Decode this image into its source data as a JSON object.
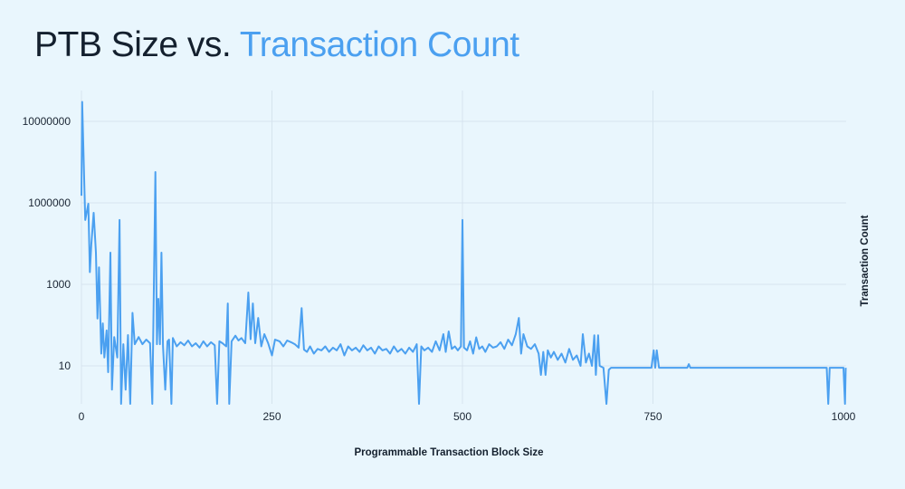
{
  "title": {
    "prefix": "PTB Size vs.",
    "highlight": "Transaction Count"
  },
  "colors": {
    "background": "#e9f6fd",
    "line": "#4ba0f0",
    "title_dark": "#14202e",
    "title_accent": "#4ba0f0",
    "grid": "#d6e4ee"
  },
  "chart_data": {
    "type": "line",
    "title": "PTB Size vs. Transaction Count",
    "xlabel": "Programmable Transaction Block Size",
    "ylabel": "Transaction Count",
    "x_ticks": [
      "0",
      "250",
      "500",
      "750",
      "1000"
    ],
    "x_tick_values": [
      0,
      250,
      500,
      750,
      1000
    ],
    "y_ticks": [
      "10",
      "1000",
      "1000000",
      "10000000"
    ],
    "y_scale": "log",
    "xlim": [
      0,
      1003
    ],
    "ylim": [
      1,
      30000000
    ],
    "grid": true,
    "legend": "none",
    "points": [
      [
        0,
        150000
      ],
      [
        1,
        30000000
      ],
      [
        5,
        38000
      ],
      [
        9,
        95000
      ],
      [
        11,
        2000
      ],
      [
        13,
        9500
      ],
      [
        16,
        57000
      ],
      [
        19,
        6000
      ],
      [
        21,
        145
      ],
      [
        23,
        2600
      ],
      [
        26,
        20
      ],
      [
        28,
        110
      ],
      [
        30,
        16
      ],
      [
        33,
        74
      ],
      [
        35,
        7
      ],
      [
        38,
        6000
      ],
      [
        40,
        2.6
      ],
      [
        43,
        51
      ],
      [
        47,
        16
      ],
      [
        50,
        38000
      ],
      [
        52,
        1
      ],
      [
        55,
        34
      ],
      [
        58,
        2.6
      ],
      [
        61,
        57
      ],
      [
        64,
        1
      ],
      [
        67,
        200
      ],
      [
        70,
        34
      ],
      [
        75,
        51
      ],
      [
        80,
        34
      ],
      [
        85,
        44
      ],
      [
        90,
        36
      ],
      [
        93,
        1
      ],
      [
        97,
        570000
      ],
      [
        99,
        34
      ],
      [
        101,
        440
      ],
      [
        103,
        34
      ],
      [
        105,
        6000
      ],
      [
        107,
        31
      ],
      [
        110,
        2.6
      ],
      [
        113,
        40
      ],
      [
        115,
        44
      ],
      [
        118,
        1
      ],
      [
        120,
        48
      ],
      [
        125,
        30
      ],
      [
        130,
        38
      ],
      [
        135,
        32
      ],
      [
        140,
        42
      ],
      [
        145,
        30
      ],
      [
        150,
        36
      ],
      [
        155,
        28
      ],
      [
        160,
        40
      ],
      [
        165,
        30
      ],
      [
        170,
        38
      ],
      [
        175,
        32
      ],
      [
        178,
        1
      ],
      [
        181,
        40
      ],
      [
        185,
        36
      ],
      [
        190,
        30
      ],
      [
        192,
        340
      ],
      [
        194,
        1
      ],
      [
        197,
        40
      ],
      [
        202,
        55
      ],
      [
        206,
        42
      ],
      [
        210,
        48
      ],
      [
        215,
        36
      ],
      [
        219,
        630
      ],
      [
        222,
        45
      ],
      [
        225,
        340
      ],
      [
        228,
        36
      ],
      [
        232,
        150
      ],
      [
        236,
        30
      ],
      [
        240,
        60
      ],
      [
        245,
        36
      ],
      [
        250,
        18
      ],
      [
        254,
        44
      ],
      [
        260,
        40
      ],
      [
        265,
        30
      ],
      [
        270,
        42
      ],
      [
        275,
        38
      ],
      [
        280,
        34
      ],
      [
        285,
        28
      ],
      [
        289,
        260
      ],
      [
        292,
        25
      ],
      [
        296,
        22
      ],
      [
        300,
        30
      ],
      [
        305,
        20
      ],
      [
        310,
        26
      ],
      [
        315,
        24
      ],
      [
        320,
        30
      ],
      [
        325,
        22
      ],
      [
        330,
        28
      ],
      [
        335,
        24
      ],
      [
        340,
        34
      ],
      [
        345,
        18
      ],
      [
        350,
        30
      ],
      [
        355,
        24
      ],
      [
        360,
        28
      ],
      [
        365,
        22
      ],
      [
        370,
        32
      ],
      [
        375,
        24
      ],
      [
        380,
        28
      ],
      [
        385,
        20
      ],
      [
        390,
        30
      ],
      [
        395,
        24
      ],
      [
        400,
        26
      ],
      [
        405,
        20
      ],
      [
        410,
        30
      ],
      [
        415,
        22
      ],
      [
        420,
        26
      ],
      [
        425,
        20
      ],
      [
        430,
        28
      ],
      [
        435,
        22
      ],
      [
        440,
        34
      ],
      [
        443,
        1
      ],
      [
        446,
        30
      ],
      [
        450,
        24
      ],
      [
        455,
        28
      ],
      [
        460,
        22
      ],
      [
        465,
        40
      ],
      [
        470,
        24
      ],
      [
        475,
        60
      ],
      [
        478,
        22
      ],
      [
        482,
        70
      ],
      [
        486,
        26
      ],
      [
        490,
        30
      ],
      [
        494,
        24
      ],
      [
        498,
        30
      ],
      [
        500,
        38000
      ],
      [
        502,
        28
      ],
      [
        506,
        24
      ],
      [
        510,
        40
      ],
      [
        514,
        20
      ],
      [
        518,
        50
      ],
      [
        522,
        26
      ],
      [
        526,
        30
      ],
      [
        530,
        22
      ],
      [
        535,
        34
      ],
      [
        540,
        28
      ],
      [
        545,
        30
      ],
      [
        550,
        38
      ],
      [
        555,
        26
      ],
      [
        560,
        44
      ],
      [
        565,
        32
      ],
      [
        570,
        60
      ],
      [
        574,
        150
      ],
      [
        577,
        20
      ],
      [
        580,
        60
      ],
      [
        585,
        30
      ],
      [
        590,
        26
      ],
      [
        595,
        34
      ],
      [
        600,
        20
      ],
      [
        603,
        6
      ],
      [
        606,
        22
      ],
      [
        609,
        6
      ],
      [
        612,
        24
      ],
      [
        616,
        16
      ],
      [
        620,
        22
      ],
      [
        625,
        14
      ],
      [
        630,
        20
      ],
      [
        635,
        12
      ],
      [
        640,
        26
      ],
      [
        645,
        14
      ],
      [
        650,
        18
      ],
      [
        655,
        10
      ],
      [
        658,
        60
      ],
      [
        662,
        12
      ],
      [
        666,
        20
      ],
      [
        670,
        10
      ],
      [
        673,
        56
      ],
      [
        675,
        6
      ],
      [
        678,
        56
      ],
      [
        680,
        10
      ],
      [
        685,
        9
      ],
      [
        689,
        1
      ],
      [
        692,
        8
      ],
      [
        695,
        9
      ],
      [
        748,
        9
      ],
      [
        751,
        24
      ],
      [
        753,
        9
      ],
      [
        755,
        24
      ],
      [
        758,
        9
      ],
      [
        795,
        9
      ],
      [
        797,
        11
      ],
      [
        799,
        9
      ],
      [
        978,
        9
      ],
      [
        980,
        1
      ],
      [
        982,
        9
      ],
      [
        1000,
        9
      ],
      [
        1002,
        1
      ],
      [
        1003,
        9
      ]
    ]
  }
}
